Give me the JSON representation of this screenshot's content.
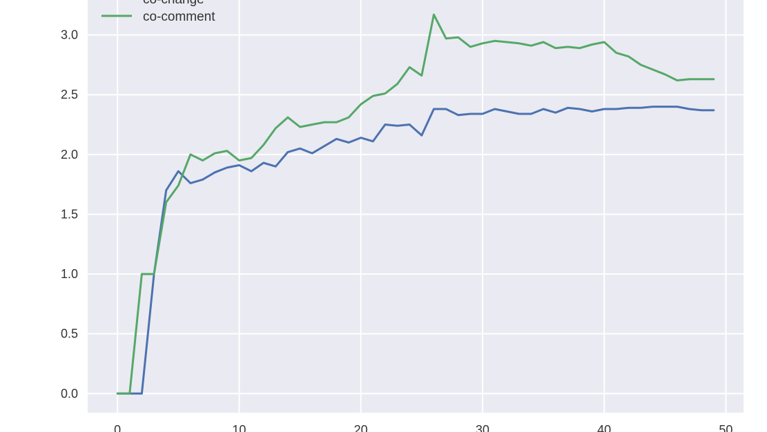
{
  "chart_data": {
    "type": "line",
    "xlim": [
      -2.45,
      51.45
    ],
    "ylim": [
      -0.16,
      3.35
    ],
    "grid": true,
    "legend_position": "top-left",
    "xticks": [
      0,
      10,
      20,
      30,
      40,
      50
    ],
    "xtick_labels": [
      "0",
      "10",
      "20",
      "30",
      "40",
      "50"
    ],
    "yticks": [
      0.0,
      0.5,
      1.0,
      1.5,
      2.0,
      2.5,
      3.0
    ],
    "ytick_labels": [
      "0.0",
      "0.5",
      "1.0",
      "1.5",
      "2.0",
      "2.5",
      "3.0"
    ],
    "x": [
      0,
      1,
      2,
      3,
      4,
      5,
      6,
      7,
      8,
      9,
      10,
      11,
      12,
      13,
      14,
      15,
      16,
      17,
      18,
      19,
      20,
      21,
      22,
      23,
      24,
      25,
      26,
      27,
      28,
      29,
      30,
      31,
      32,
      33,
      34,
      35,
      36,
      37,
      38,
      39,
      40,
      41,
      42,
      43,
      44,
      45,
      46,
      47,
      48,
      49
    ],
    "series": [
      {
        "name": "co-change",
        "color": "#4c72b0",
        "values": [
          0,
          0,
          0,
          1.0,
          1.7,
          1.86,
          1.76,
          1.79,
          1.85,
          1.89,
          1.91,
          1.86,
          1.93,
          1.9,
          2.02,
          2.05,
          2.01,
          2.07,
          2.13,
          2.1,
          2.14,
          2.11,
          2.25,
          2.24,
          2.25,
          2.16,
          2.38,
          2.38,
          2.33,
          2.34,
          2.34,
          2.38,
          2.36,
          2.34,
          2.34,
          2.38,
          2.35,
          2.39,
          2.38,
          2.36,
          2.38,
          2.38,
          2.39,
          2.39,
          2.4,
          2.4,
          2.4,
          2.38,
          2.37,
          2.37
        ]
      },
      {
        "name": "co-comment",
        "color": "#55a868",
        "values": [
          0,
          0,
          1.0,
          1.0,
          1.6,
          1.74,
          2.0,
          1.95,
          2.01,
          2.03,
          1.95,
          1.97,
          2.08,
          2.22,
          2.31,
          2.23,
          2.25,
          2.27,
          2.27,
          2.31,
          2.42,
          2.49,
          2.51,
          2.59,
          2.73,
          2.66,
          3.17,
          2.97,
          2.98,
          2.9,
          2.93,
          2.95,
          2.94,
          2.93,
          2.91,
          2.94,
          2.89,
          2.9,
          2.89,
          2.92,
          2.94,
          2.85,
          2.82,
          2.75,
          2.71,
          2.67,
          2.62,
          2.63,
          2.63,
          2.63
        ]
      }
    ]
  }
}
